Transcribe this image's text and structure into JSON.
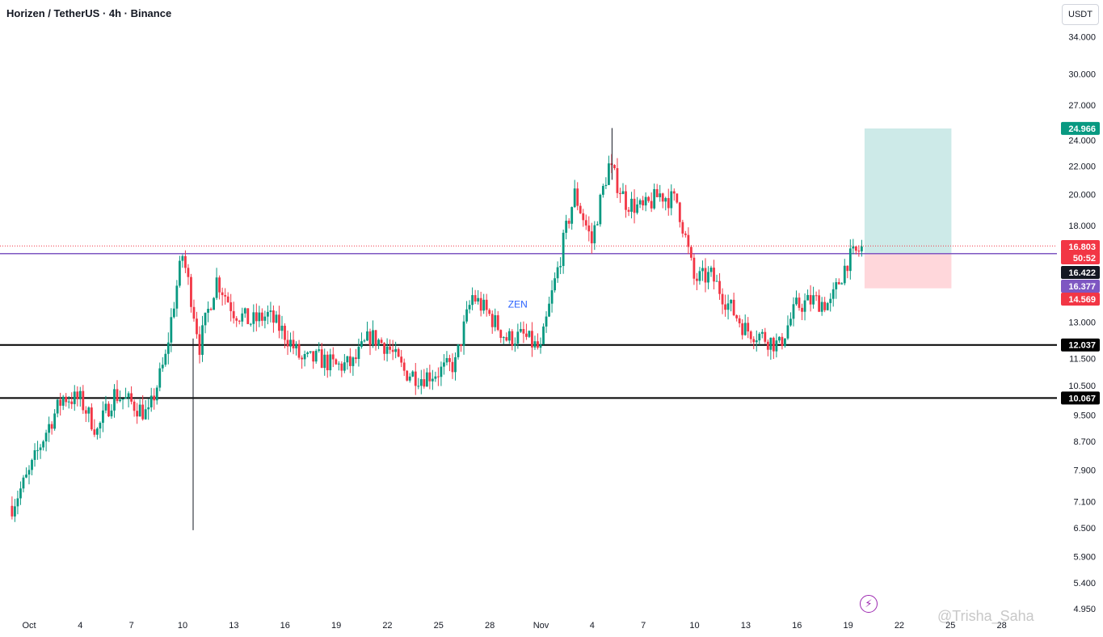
{
  "header": {
    "symbol_title": "Horizen / TetherUS · 4h · Binance",
    "currency_button": "USDT"
  },
  "watermark": "@Trisha_Saha",
  "icons": {
    "bolt": "lightning-bolt-icon"
  },
  "colors": {
    "up": "#089981",
    "down": "#f23645",
    "purple_line": "#7e57c2",
    "support_line": "#000000",
    "target_zone": "#b2dfdb",
    "stop_zone": "#ffcdd2",
    "zen_label": "#2962ff"
  },
  "chart_data": {
    "type": "candlestick",
    "scale": "log",
    "yaxis_ticks": [
      34,
      30,
      27,
      24,
      22,
      20,
      18,
      13,
      11.5,
      10.5,
      9.5,
      8.7,
      7.9,
      7.1,
      6.5,
      5.9,
      5.4,
      4.95
    ],
    "yaxis_tick_labels": [
      "34.000",
      "30.000",
      "27.000",
      "24.000",
      "22.000",
      "20.000",
      "18.000",
      "13.000",
      "11.500",
      "10.500",
      "9.500",
      "8.700",
      "7.900",
      "7.100",
      "6.500",
      "5.900",
      "5.400",
      "4.950"
    ],
    "xaxis_labels": [
      "Oct",
      "4",
      "7",
      "10",
      "13",
      "16",
      "19",
      "22",
      "25",
      "28",
      "Nov",
      "4",
      "7",
      "10",
      "13",
      "16",
      "19",
      "22",
      "25",
      "28"
    ],
    "annotations": [
      {
        "text": "ZEN",
        "date": "Oct 29",
        "price": 13.8
      }
    ],
    "price_tags": [
      {
        "value": "24.966",
        "kind": "target"
      },
      {
        "value": "16.803",
        "kind": "current"
      },
      {
        "value": "50:52",
        "kind": "countdown"
      },
      {
        "value": "16.422",
        "kind": "line"
      },
      {
        "value": "16.377",
        "kind": "entry"
      },
      {
        "value": "14.569",
        "kind": "stop"
      },
      {
        "value": "12.037",
        "kind": "support"
      },
      {
        "value": "10.067",
        "kind": "support"
      }
    ],
    "horizontal_levels": [
      {
        "price": 16.377,
        "color": "#7e57c2"
      },
      {
        "price": 12.037,
        "color": "#000000"
      },
      {
        "price": 10.067,
        "color": "#000000"
      }
    ],
    "current_price": 16.803,
    "position": {
      "entry": 16.377,
      "target": 24.966,
      "stop": 14.569,
      "start_date": "Nov 19",
      "end_date": "Nov 24"
    },
    "daily_close": [
      {
        "d": "Sep 30",
        "c": 7.0
      },
      {
        "d": "Oct 1",
        "c": 7.8
      },
      {
        "d": "Oct 2",
        "c": 9.0
      },
      {
        "d": "Oct 3",
        "c": 10.1
      },
      {
        "d": "Oct 4",
        "c": 10.0
      },
      {
        "d": "Oct 5",
        "c": 9.0
      },
      {
        "d": "Oct 6",
        "c": 10.2
      },
      {
        "d": "Oct 7",
        "c": 9.9
      },
      {
        "d": "Oct 8",
        "c": 9.5
      },
      {
        "d": "Oct 9",
        "c": 11.5
      },
      {
        "d": "Oct 10",
        "c": 16.3
      },
      {
        "d": "Oct 11",
        "c": 12.0
      },
      {
        "d": "Oct 12",
        "c": 15.0
      },
      {
        "d": "Oct 13",
        "c": 13.5
      },
      {
        "d": "Oct 14",
        "c": 13.0
      },
      {
        "d": "Oct 15",
        "c": 13.3
      },
      {
        "d": "Oct 16",
        "c": 12.5
      },
      {
        "d": "Oct 17",
        "c": 11.4
      },
      {
        "d": "Oct 18",
        "c": 11.5
      },
      {
        "d": "Oct 19",
        "c": 11.2
      },
      {
        "d": "Oct 20",
        "c": 11.3
      },
      {
        "d": "Oct 21",
        "c": 12.4
      },
      {
        "d": "Oct 22",
        "c": 12.0
      },
      {
        "d": "Oct 23",
        "c": 11.0
      },
      {
        "d": "Oct 24",
        "c": 10.8
      },
      {
        "d": "Oct 25",
        "c": 11.0
      },
      {
        "d": "Oct 26",
        "c": 11.3
      },
      {
        "d": "Oct 27",
        "c": 14.2
      },
      {
        "d": "Oct 28",
        "c": 13.3
      },
      {
        "d": "Oct 29",
        "c": 12.3
      },
      {
        "d": "Oct 30",
        "c": 12.4
      },
      {
        "d": "Oct 31",
        "c": 11.8
      },
      {
        "d": "Nov 1",
        "c": 15.5
      },
      {
        "d": "Nov 2",
        "c": 20.0
      },
      {
        "d": "Nov 3",
        "c": 17.0
      },
      {
        "d": "Nov 4",
        "c": 22.0
      },
      {
        "d": "Nov 5",
        "c": 19.5
      },
      {
        "d": "Nov 6",
        "c": 19.0
      },
      {
        "d": "Nov 7",
        "c": 20.0
      },
      {
        "d": "Nov 8",
        "c": 19.5
      },
      {
        "d": "Nov 9",
        "c": 15.0
      },
      {
        "d": "Nov 10",
        "c": 15.2
      },
      {
        "d": "Nov 11",
        "c": 13.8
      },
      {
        "d": "Nov 12",
        "c": 12.7
      },
      {
        "d": "Nov 13",
        "c": 12.4
      },
      {
        "d": "Nov 14",
        "c": 12.0
      },
      {
        "d": "Nov 15",
        "c": 13.7
      },
      {
        "d": "Nov 16",
        "c": 14.0
      },
      {
        "d": "Nov 17",
        "c": 13.8
      },
      {
        "d": "Nov 18",
        "c": 16.0
      },
      {
        "d": "Nov 19",
        "c": 16.8
      }
    ]
  }
}
